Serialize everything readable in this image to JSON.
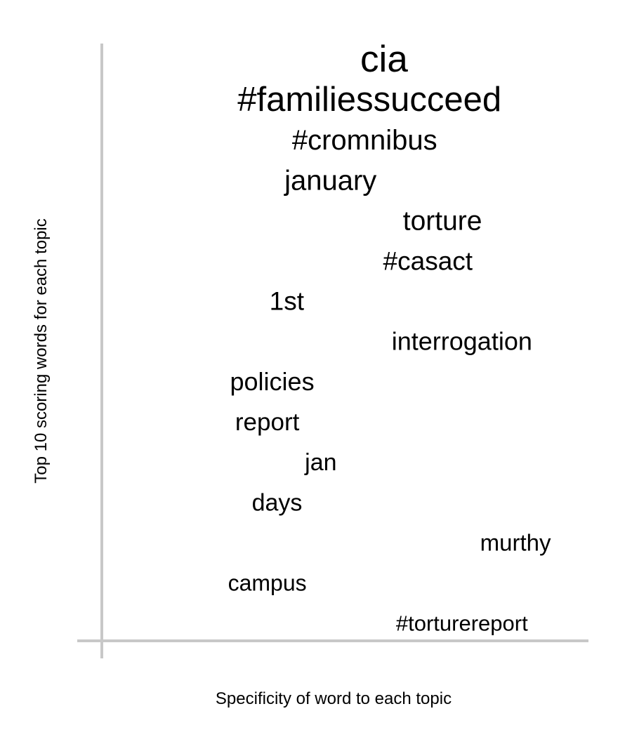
{
  "chart_data": {
    "type": "scatter",
    "xlabel": "Specificity of word to each topic",
    "ylabel": "Top 10 scoring words for each topic",
    "words": [
      {
        "text": "cia",
        "x": 0.58,
        "rank": 1,
        "weight": 1.0
      },
      {
        "text": "#familiessucceed",
        "x": 0.55,
        "rank": 2,
        "weight": 0.93
      },
      {
        "text": "#cromnibus",
        "x": 0.54,
        "rank": 3,
        "weight": 0.78
      },
      {
        "text": "january",
        "x": 0.47,
        "rank": 4,
        "weight": 0.77
      },
      {
        "text": "torture",
        "x": 0.7,
        "rank": 5,
        "weight": 0.75
      },
      {
        "text": "#casact",
        "x": 0.67,
        "rank": 6,
        "weight": 0.73
      },
      {
        "text": "1st",
        "x": 0.38,
        "rank": 7,
        "weight": 0.72
      },
      {
        "text": "interrogation",
        "x": 0.74,
        "rank": 8,
        "weight": 0.71
      },
      {
        "text": "policies",
        "x": 0.35,
        "rank": 9,
        "weight": 0.7
      },
      {
        "text": "report",
        "x": 0.34,
        "rank": 10,
        "weight": 0.69
      },
      {
        "text": "jan",
        "x": 0.45,
        "rank": 11,
        "weight": 0.68
      },
      {
        "text": "days",
        "x": 0.36,
        "rank": 12,
        "weight": 0.67
      },
      {
        "text": "murthy",
        "x": 0.85,
        "rank": 13,
        "weight": 0.65
      },
      {
        "text": "campus",
        "x": 0.34,
        "rank": 14,
        "weight": 0.64
      },
      {
        "text": "#torturereport",
        "x": 0.74,
        "rank": 15,
        "weight": 0.62
      }
    ],
    "colors": {
      "axis": "#c8c8c8",
      "text": "#000000"
    },
    "grid": false
  }
}
